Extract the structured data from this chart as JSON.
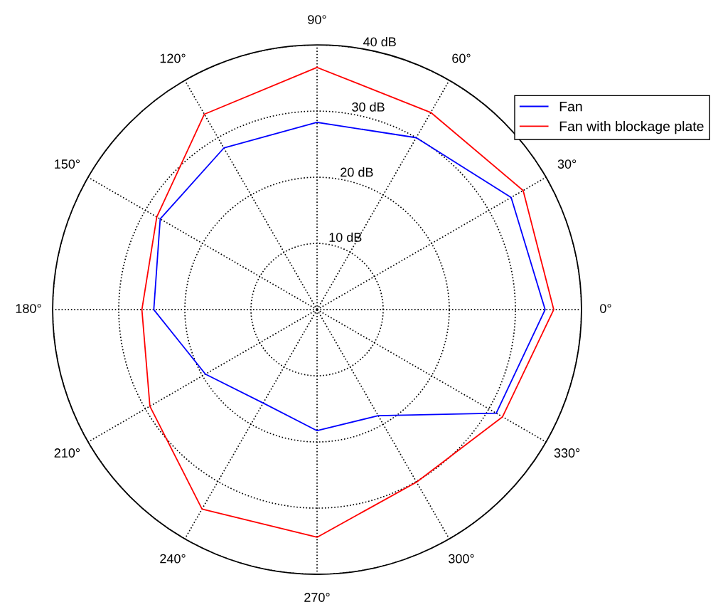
{
  "chart_data": {
    "type": "radar",
    "categories": [
      "90°",
      "60°",
      "30°",
      "0°",
      "330°",
      "300°",
      "270°",
      "240°",
      "210°",
      "180°",
      "150°",
      "120°"
    ],
    "series": [
      {
        "name": "Fan",
        "color": "#0000ff",
        "values": [
          28.3,
          30.0,
          33.9,
          34.5,
          31.3,
          18.5,
          18.3,
          16.3,
          19.5,
          24.7,
          27.4,
          28.2
        ]
      },
      {
        "name": "Fan with blockage plate",
        "color": "#ff0000",
        "values": [
          36.6,
          34.4,
          36.0,
          35.8,
          32.4,
          30.1,
          34.4,
          34.8,
          29.2,
          26.5,
          28.0,
          34.1
        ]
      }
    ],
    "ylim": [
      0,
      40
    ],
    "yticks": [
      {
        "value": 10,
        "label": "10 dB"
      },
      {
        "value": 20,
        "label": "20 dB"
      },
      {
        "value": 30,
        "label": "30 dB"
      },
      {
        "value": 40,
        "label": "40 dB"
      }
    ],
    "grid": true,
    "legend": "top right",
    "line_style": "solid",
    "marker": "none"
  }
}
